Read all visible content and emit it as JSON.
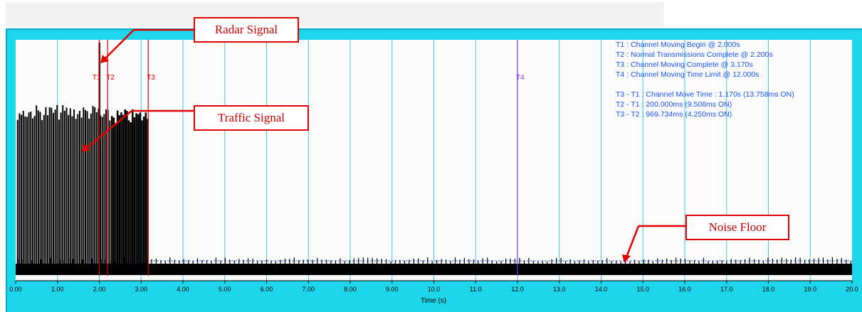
{
  "chart_data": {
    "type": "line",
    "xlabel": "Time (s)",
    "ylabel": "",
    "xlim": [
      0,
      20
    ],
    "x_ticks": [
      "0.00",
      "1.00",
      "2.00",
      "3.00",
      "4.00",
      "5.00",
      "6.00",
      "7.00",
      "8.00",
      "9.00",
      "10.0",
      "11.0",
      "12.0",
      "13.0",
      "14.0",
      "15.0",
      "16.0",
      "17.0",
      "18.0",
      "19.0",
      "20.0"
    ],
    "grid": "vertical",
    "noise_threshold_dashed": true,
    "markers": [
      {
        "label": "T1",
        "x": 2.0,
        "color": "#e00000"
      },
      {
        "label": "T2",
        "x": 2.2,
        "color": "#e00000"
      },
      {
        "label": "T3",
        "x": 3.17,
        "color": "#e00000"
      },
      {
        "label": "T4",
        "x": 12.0,
        "color": "#8a2be2"
      }
    ],
    "info_lines": [
      "T1 : Channel Moving Begin @ 2.000s",
      "T2 : Normal Transmissions Complete @ 2.200s",
      "T3 : Channel Moving Complete @ 3.170s",
      "T4 : Channel Moving Time Limit @ 12.000s",
      "",
      "T3 - T1 : Channel Move Time : 1.170s (13.758ms ON)",
      "T2 - T1 : 200.000ms (9.508ms ON)",
      "T3 - T2 : 969.734ms (4.250ms ON)"
    ],
    "series": [
      {
        "x_start": 0.0,
        "x_end": 3.17,
        "level": 0.72
      },
      {
        "x_start": 0.0,
        "x_end": 20.0,
        "level": 0.05
      },
      {
        "x": 2.0,
        "level": 1.0
      }
    ]
  },
  "annotations": {
    "radar": "Radar Signal",
    "traffic": "Traffic Signal",
    "noise": "Noise Floor"
  },
  "colors": {
    "frame": "#1ed6ec",
    "plot_bg": "#fbfbfb",
    "grid": "#3fc6e6",
    "signal": "#000000",
    "info_text": "#1a55ff",
    "callout": "#e00000"
  }
}
